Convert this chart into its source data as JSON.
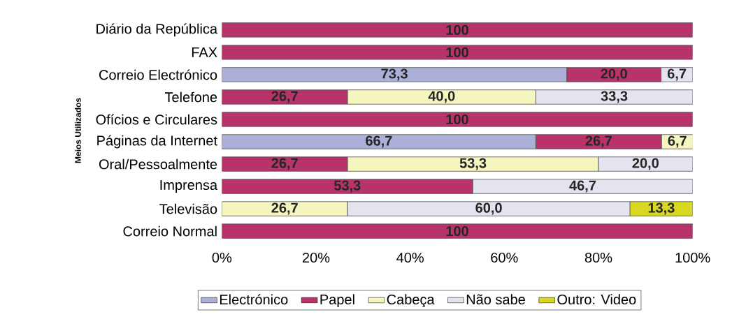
{
  "chart_data": {
    "type": "bar",
    "orientation": "horizontal",
    "stacked": true,
    "ylabel": "Meios Utilizados",
    "categories": [
      "Diário da República",
      "FAX",
      "Correio Electrónico",
      "Telefone",
      "Ofícios e Circulares",
      "Páginas da Internet",
      "Oral/Pessoalmente",
      "Imprensa",
      "Televisão",
      "Correio Normal"
    ],
    "series": [
      {
        "name": "Electrónico",
        "color": "#aab0d8",
        "values": [
          null,
          null,
          73.3,
          null,
          null,
          66.7,
          null,
          null,
          null,
          null
        ],
        "value_labels": [
          null,
          null,
          "73,3",
          null,
          null,
          "66,7",
          null,
          null,
          null,
          null
        ]
      },
      {
        "name": "Papel",
        "color": "#b8336a",
        "values": [
          100,
          100,
          20.0,
          26.7,
          100,
          26.7,
          26.7,
          53.3,
          null,
          100
        ],
        "value_labels": [
          "100",
          "100",
          "20,0",
          "26,7",
          "100",
          "26,7",
          "26,7",
          "53,3",
          null,
          "100"
        ]
      },
      {
        "name": "Cabeça",
        "color": "#f5f5c0",
        "values": [
          null,
          null,
          null,
          40.0,
          null,
          6.7,
          53.3,
          null,
          26.7,
          null
        ],
        "value_labels": [
          null,
          null,
          null,
          "40,0",
          null,
          "6,7",
          "53,3",
          null,
          "26,7",
          null
        ]
      },
      {
        "name": "Não sabe",
        "color": "#e4e4f0",
        "values": [
          null,
          null,
          6.7,
          33.3,
          null,
          null,
          20.0,
          46.7,
          60.0,
          null
        ],
        "value_labels": [
          null,
          null,
          "6,7",
          "33,3",
          null,
          null,
          "20,0",
          "46,7",
          "60,0",
          null
        ]
      },
      {
        "name": "Outro: Video",
        "color": "#d8d820",
        "values": [
          null,
          null,
          null,
          null,
          null,
          null,
          null,
          null,
          13.3,
          null
        ],
        "value_labels": [
          null,
          null,
          null,
          null,
          null,
          null,
          null,
          null,
          "13,3",
          null
        ]
      }
    ],
    "xlim": [
      0,
      100
    ],
    "xticks": [
      {
        "value": 0,
        "label": "0%"
      },
      {
        "value": 20,
        "label": "20%"
      },
      {
        "value": 40,
        "label": "40%"
      },
      {
        "value": 60,
        "label": "60%"
      },
      {
        "value": 80,
        "label": "80%"
      },
      {
        "value": 100,
        "label": "100%"
      }
    ],
    "grid": false,
    "legend": "bottom"
  }
}
